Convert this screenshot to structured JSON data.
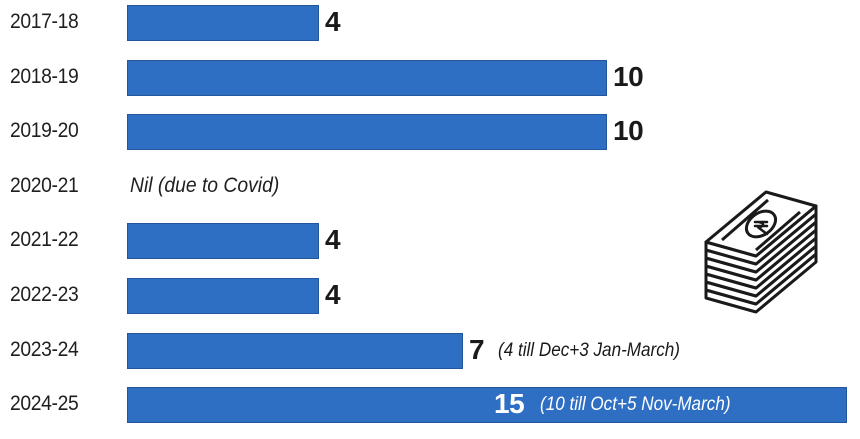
{
  "chart_data": {
    "type": "bar",
    "orientation": "horizontal",
    "categories": [
      "2017-18",
      "2018-19",
      "2019-20",
      "2020-21",
      "2021-22",
      "2022-23",
      "2023-24",
      "2024-25"
    ],
    "values": [
      4,
      10,
      10,
      null,
      4,
      4,
      7,
      15
    ],
    "value_labels": [
      "4",
      "10",
      "10",
      "",
      "4",
      "4",
      "7",
      "15"
    ],
    "notes": [
      "",
      "",
      "",
      "Nil (due to Covid)",
      "",
      "",
      "(4 till Dec+3 Jan-March)",
      "(10 till Oct+5 Nov-March)"
    ],
    "bar_color": "#2e6fc4",
    "xlim": [
      0,
      15
    ],
    "grid": false,
    "legend": "none"
  },
  "decoration": {
    "icon": "money-stack-icon",
    "icon_color": "#1a1a1a"
  }
}
